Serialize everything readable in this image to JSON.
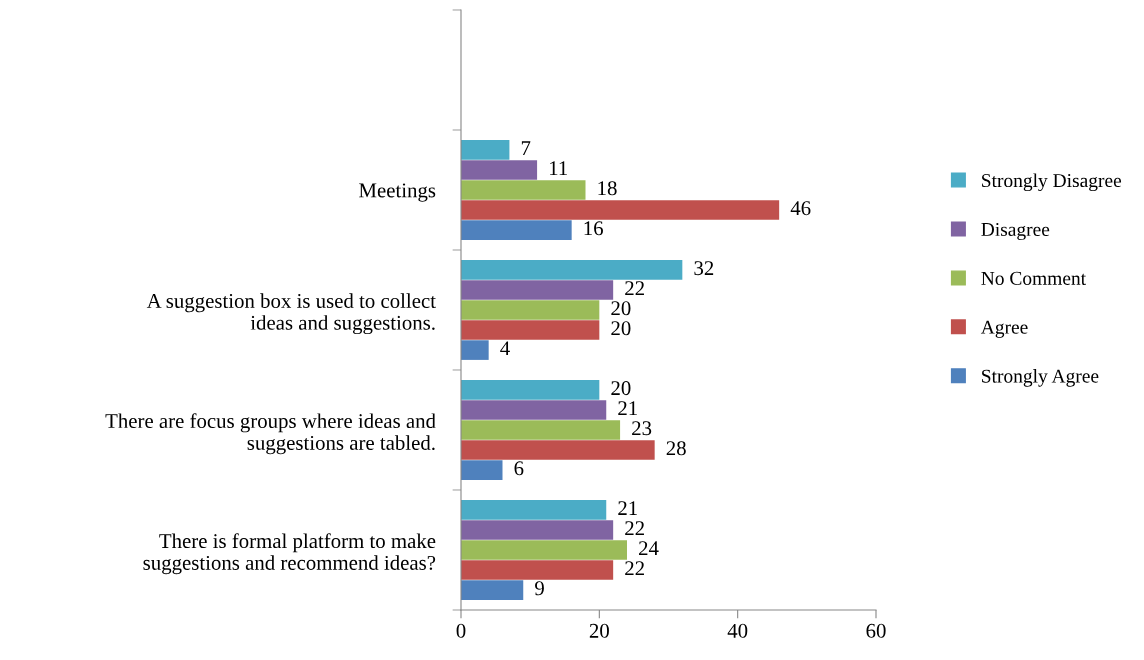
{
  "chart_data": {
    "type": "bar",
    "orientation": "horizontal",
    "categories": [
      null,
      "Meetings",
      "A suggestion box is used to collect\nideas and suggestions.",
      "There are focus groups where ideas and\nsuggestions are tabled.",
      "There is formal platform to make\nsuggestions and recommend ideas?"
    ],
    "series": [
      {
        "name": "Strongly Disagree",
        "color": "#4bacc6",
        "values": [
          null,
          7,
          32,
          20,
          21
        ]
      },
      {
        "name": "Disagree",
        "color": "#8064a2",
        "values": [
          null,
          11,
          22,
          21,
          22
        ]
      },
      {
        "name": "No Comment",
        "color": "#9bbb59",
        "values": [
          null,
          18,
          20,
          23,
          24
        ]
      },
      {
        "name": "Agree",
        "color": "#c0504d",
        "values": [
          null,
          46,
          20,
          28,
          22
        ]
      },
      {
        "name": "Strongly Agree",
        "color": "#4f81bd",
        "values": [
          null,
          16,
          4,
          6,
          9
        ]
      }
    ],
    "xlim": [
      0,
      60
    ],
    "xticks": [
      0,
      20,
      40,
      60
    ],
    "data_labels": true,
    "grid": false,
    "legend": "right"
  }
}
